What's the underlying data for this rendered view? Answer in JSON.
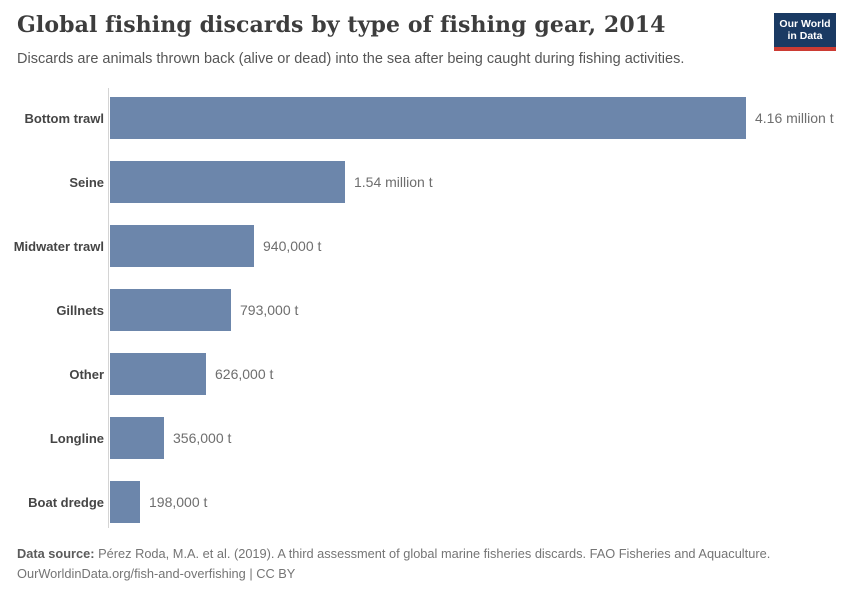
{
  "header": {
    "title": "Global fishing discards by type of fishing gear, 2014",
    "subtitle": "Discards are animals thrown back (alive or dead) into the sea after being caught during fishing activities.",
    "logo": {
      "line1": "Our World",
      "line2": "in Data",
      "bg_color": "#1a3a63",
      "accent_color": "#cc3b33"
    }
  },
  "chart_data": {
    "type": "bar",
    "orientation": "horizontal",
    "title": "Global fishing discards by type of fishing gear, 2014",
    "categories": [
      "Bottom trawl",
      "Seine",
      "Midwater trawl",
      "Gillnets",
      "Other",
      "Longline",
      "Boat dredge"
    ],
    "values": [
      4160000,
      1540000,
      940000,
      793000,
      626000,
      356000,
      198000
    ],
    "value_labels": [
      "4.16 million t",
      "1.54 million t",
      "940,000 t",
      "793,000 t",
      "626,000 t",
      "356,000 t",
      "198,000 t"
    ],
    "unit": "t",
    "xlim": [
      0,
      4160000
    ],
    "grid": false,
    "legend": "none",
    "bar_color": "#6c86ab",
    "axis_color": "#d4d4d4"
  },
  "footer": {
    "source_label": "Data source:",
    "source_text": "Pérez Roda, M.A. et al. (2019). A third assessment of global marine fisheries discards. FAO Fisheries and Aquaculture.",
    "link_line": "OurWorldinData.org/fish-and-overfishing | CC BY"
  }
}
